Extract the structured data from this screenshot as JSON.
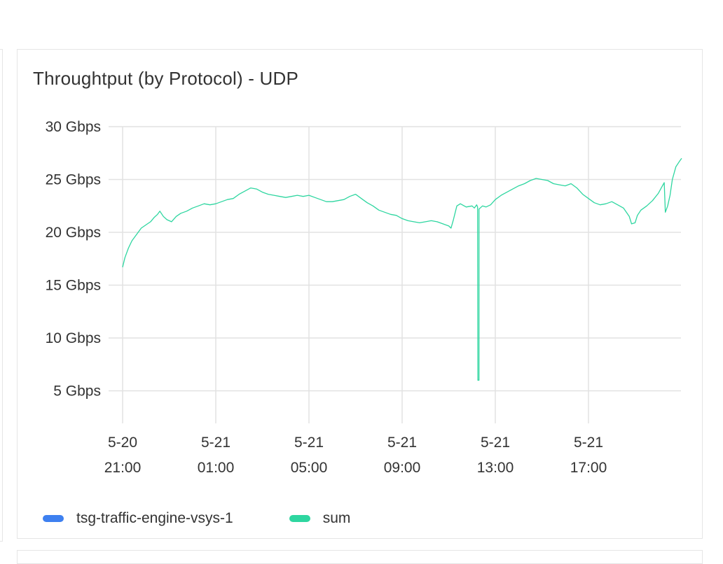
{
  "panel": {
    "title": "Throughtput (by Protocol) - UDP"
  },
  "chart_data": {
    "type": "line",
    "title": "Throughtput (by Protocol) - UDP",
    "y_unit": "Gbps",
    "ylim": [
      2,
      30
    ],
    "yticks": [
      {
        "value": 5,
        "label": "5 Gbps"
      },
      {
        "value": 10,
        "label": "10 Gbps"
      },
      {
        "value": 15,
        "label": "15 Gbps"
      },
      {
        "value": 20,
        "label": "20 Gbps"
      },
      {
        "value": 25,
        "label": "25 Gbps"
      },
      {
        "value": 30,
        "label": "30 Gbps"
      }
    ],
    "xlim": [
      21,
      45
    ],
    "xticks": [
      {
        "value": 21,
        "date": "5-20",
        "time": "21:00"
      },
      {
        "value": 25,
        "date": "5-21",
        "time": "01:00"
      },
      {
        "value": 29,
        "date": "5-21",
        "time": "05:00"
      },
      {
        "value": 33,
        "date": "5-21",
        "time": "09:00"
      },
      {
        "value": 37,
        "date": "5-21",
        "time": "13:00"
      },
      {
        "value": 41,
        "date": "5-21",
        "time": "17:00"
      }
    ],
    "grid": true,
    "legend_position": "bottom-left",
    "series": [
      {
        "name": "tsg-traffic-engine-vsys-1",
        "color": "#3e80f0",
        "points": []
      },
      {
        "name": "sum",
        "color": "#2ed6a0",
        "points": [
          [
            21.0,
            16.7
          ],
          [
            21.1,
            17.6
          ],
          [
            21.25,
            18.5
          ],
          [
            21.4,
            19.2
          ],
          [
            21.6,
            19.8
          ],
          [
            21.8,
            20.4
          ],
          [
            22.0,
            20.7
          ],
          [
            22.2,
            21.0
          ],
          [
            22.35,
            21.4
          ],
          [
            22.5,
            21.7
          ],
          [
            22.6,
            22.0
          ],
          [
            22.75,
            21.5
          ],
          [
            22.9,
            21.2
          ],
          [
            23.1,
            21.0
          ],
          [
            23.3,
            21.5
          ],
          [
            23.5,
            21.8
          ],
          [
            23.75,
            22.0
          ],
          [
            24.0,
            22.3
          ],
          [
            24.25,
            22.5
          ],
          [
            24.5,
            22.7
          ],
          [
            24.75,
            22.6
          ],
          [
            25.0,
            22.7
          ],
          [
            25.25,
            22.9
          ],
          [
            25.5,
            23.1
          ],
          [
            25.75,
            23.2
          ],
          [
            26.0,
            23.6
          ],
          [
            26.25,
            23.9
          ],
          [
            26.5,
            24.2
          ],
          [
            26.75,
            24.1
          ],
          [
            27.0,
            23.8
          ],
          [
            27.25,
            23.6
          ],
          [
            27.5,
            23.5
          ],
          [
            27.75,
            23.4
          ],
          [
            28.0,
            23.3
          ],
          [
            28.25,
            23.4
          ],
          [
            28.5,
            23.5
          ],
          [
            28.75,
            23.4
          ],
          [
            29.0,
            23.5
          ],
          [
            29.25,
            23.3
          ],
          [
            29.5,
            23.1
          ],
          [
            29.75,
            22.9
          ],
          [
            30.0,
            22.9
          ],
          [
            30.25,
            23.0
          ],
          [
            30.5,
            23.1
          ],
          [
            30.75,
            23.4
          ],
          [
            31.0,
            23.6
          ],
          [
            31.25,
            23.2
          ],
          [
            31.5,
            22.8
          ],
          [
            31.75,
            22.5
          ],
          [
            32.0,
            22.1
          ],
          [
            32.25,
            21.9
          ],
          [
            32.5,
            21.7
          ],
          [
            32.75,
            21.6
          ],
          [
            33.0,
            21.3
          ],
          [
            33.25,
            21.1
          ],
          [
            33.5,
            21.0
          ],
          [
            33.75,
            20.9
          ],
          [
            34.0,
            21.0
          ],
          [
            34.25,
            21.1
          ],
          [
            34.5,
            21.0
          ],
          [
            34.75,
            20.8
          ],
          [
            35.0,
            20.6
          ],
          [
            35.1,
            20.4
          ],
          [
            35.2,
            21.2
          ],
          [
            35.35,
            22.5
          ],
          [
            35.5,
            22.7
          ],
          [
            35.75,
            22.4
          ],
          [
            36.0,
            22.5
          ],
          [
            36.1,
            22.3
          ],
          [
            36.2,
            22.6
          ],
          [
            36.24,
            22.4
          ],
          [
            36.25,
            6.0
          ],
          [
            36.3,
            6.0
          ],
          [
            36.3,
            22.2
          ],
          [
            36.45,
            22.5
          ],
          [
            36.6,
            22.4
          ],
          [
            36.8,
            22.6
          ],
          [
            37.0,
            23.1
          ],
          [
            37.25,
            23.5
          ],
          [
            37.5,
            23.8
          ],
          [
            37.75,
            24.1
          ],
          [
            38.0,
            24.4
          ],
          [
            38.25,
            24.6
          ],
          [
            38.5,
            24.9
          ],
          [
            38.75,
            25.1
          ],
          [
            39.0,
            25.0
          ],
          [
            39.25,
            24.9
          ],
          [
            39.5,
            24.6
          ],
          [
            39.75,
            24.5
          ],
          [
            40.0,
            24.4
          ],
          [
            40.25,
            24.6
          ],
          [
            40.5,
            24.2
          ],
          [
            40.75,
            23.6
          ],
          [
            41.0,
            23.2
          ],
          [
            41.25,
            22.8
          ],
          [
            41.5,
            22.6
          ],
          [
            41.75,
            22.7
          ],
          [
            42.0,
            22.9
          ],
          [
            42.25,
            22.6
          ],
          [
            42.5,
            22.3
          ],
          [
            42.75,
            21.5
          ],
          [
            42.85,
            20.8
          ],
          [
            43.0,
            20.9
          ],
          [
            43.1,
            21.6
          ],
          [
            43.25,
            22.1
          ],
          [
            43.5,
            22.5
          ],
          [
            43.75,
            23.0
          ],
          [
            44.0,
            23.7
          ],
          [
            44.15,
            24.3
          ],
          [
            44.25,
            24.7
          ],
          [
            44.3,
            21.9
          ],
          [
            44.4,
            22.5
          ],
          [
            44.5,
            23.5
          ],
          [
            44.6,
            25.0
          ],
          [
            44.75,
            26.2
          ],
          [
            44.9,
            26.7
          ],
          [
            45.0,
            27.0
          ]
        ]
      }
    ]
  }
}
